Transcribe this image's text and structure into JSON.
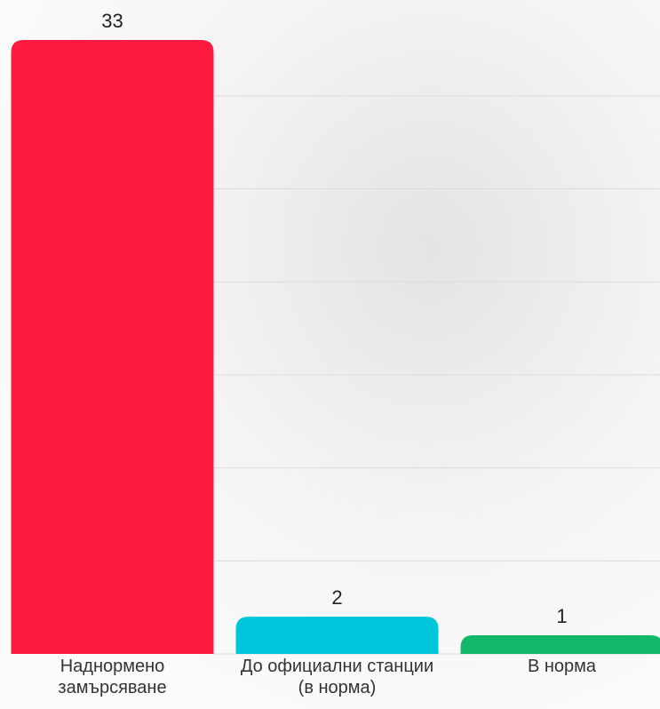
{
  "chart_data": {
    "type": "bar",
    "categories": [
      "Наднормено замърсяване",
      "До официални станции (в норма)",
      "В норма"
    ],
    "values": [
      33,
      2,
      1
    ],
    "colors": [
      "#ff1a40",
      "#00c6dc",
      "#12b86a"
    ],
    "ylim": [
      0,
      33
    ],
    "yticks": [
      0,
      5,
      10,
      15,
      20,
      25,
      30
    ],
    "grid": true
  }
}
